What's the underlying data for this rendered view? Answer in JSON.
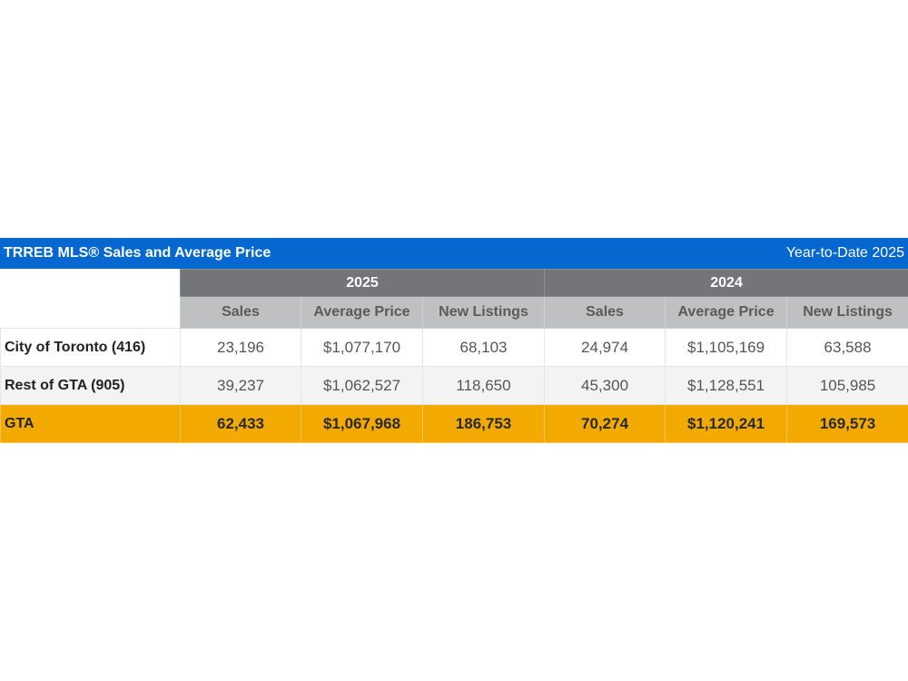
{
  "header": {
    "title": "TRREB MLS® Sales and Average Price",
    "period": "Year-to-Date 2025"
  },
  "colors": {
    "title_bar": "#0468d0",
    "year_header": "#737579",
    "sub_header": "#bfc0c1",
    "total_row": "#f2aa00"
  },
  "years": [
    "2025",
    "2024"
  ],
  "columns": [
    "Sales",
    "Average Price",
    "New Listings",
    "Sales",
    "Average Price",
    "New Listings"
  ],
  "rows": [
    {
      "label": "City of Toronto (416)",
      "values": [
        "23,196",
        "$1,077,170",
        "68,103",
        "24,974",
        "$1,105,169",
        "63,588"
      ]
    },
    {
      "label": "Rest of GTA (905)",
      "values": [
        "39,237",
        "$1,062,527",
        "118,650",
        "45,300",
        "$1,128,551",
        "105,985"
      ]
    },
    {
      "label": "GTA",
      "values": [
        "62,433",
        "$1,067,968",
        "186,753",
        "70,274",
        "$1,120,241",
        "169,573"
      ]
    }
  ]
}
